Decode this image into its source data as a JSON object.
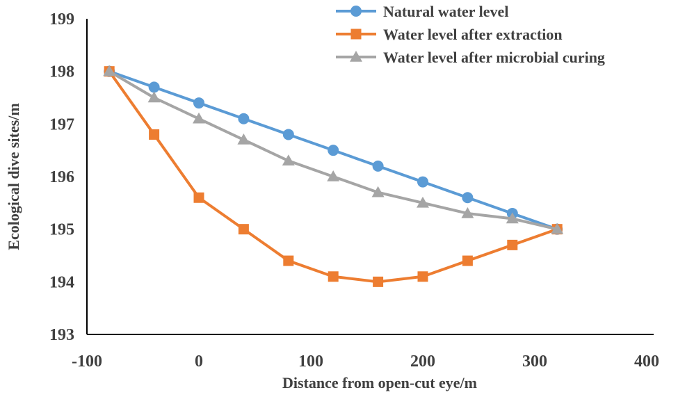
{
  "chart_data": {
    "type": "line",
    "title": "",
    "xlabel": "Distance from open-cut eye/m",
    "ylabel": "Ecological dive sites/m",
    "xlim": [
      -100,
      400
    ],
    "ylim": [
      193,
      199
    ],
    "xticks": [
      "-100",
      "0",
      "100",
      "200",
      "300",
      "400"
    ],
    "yticks": [
      "193",
      "194",
      "195",
      "196",
      "197",
      "198",
      "199"
    ],
    "grid": false,
    "legend_position": "top-right",
    "x": [
      -80,
      -40,
      0,
      40,
      80,
      120,
      160,
      200,
      240,
      280,
      320
    ],
    "series": [
      {
        "name": "Natural water level",
        "color": "#5B9BD5",
        "marker": "circle",
        "values": [
          198.0,
          197.7,
          197.4,
          197.1,
          196.8,
          196.5,
          196.2,
          195.9,
          195.6,
          195.3,
          195.0
        ]
      },
      {
        "name": "Water level after extraction",
        "color": "#ED7D31",
        "marker": "square",
        "values": [
          198.0,
          196.8,
          195.6,
          195.0,
          194.4,
          194.1,
          194.0,
          194.1,
          194.4,
          194.7,
          195.0
        ]
      },
      {
        "name": "Water level after microbial curing",
        "color": "#A5A5A5",
        "marker": "triangle",
        "values": [
          198.0,
          197.5,
          197.1,
          196.7,
          196.3,
          196.0,
          195.7,
          195.5,
          195.3,
          195.2,
          195.0
        ]
      }
    ]
  }
}
